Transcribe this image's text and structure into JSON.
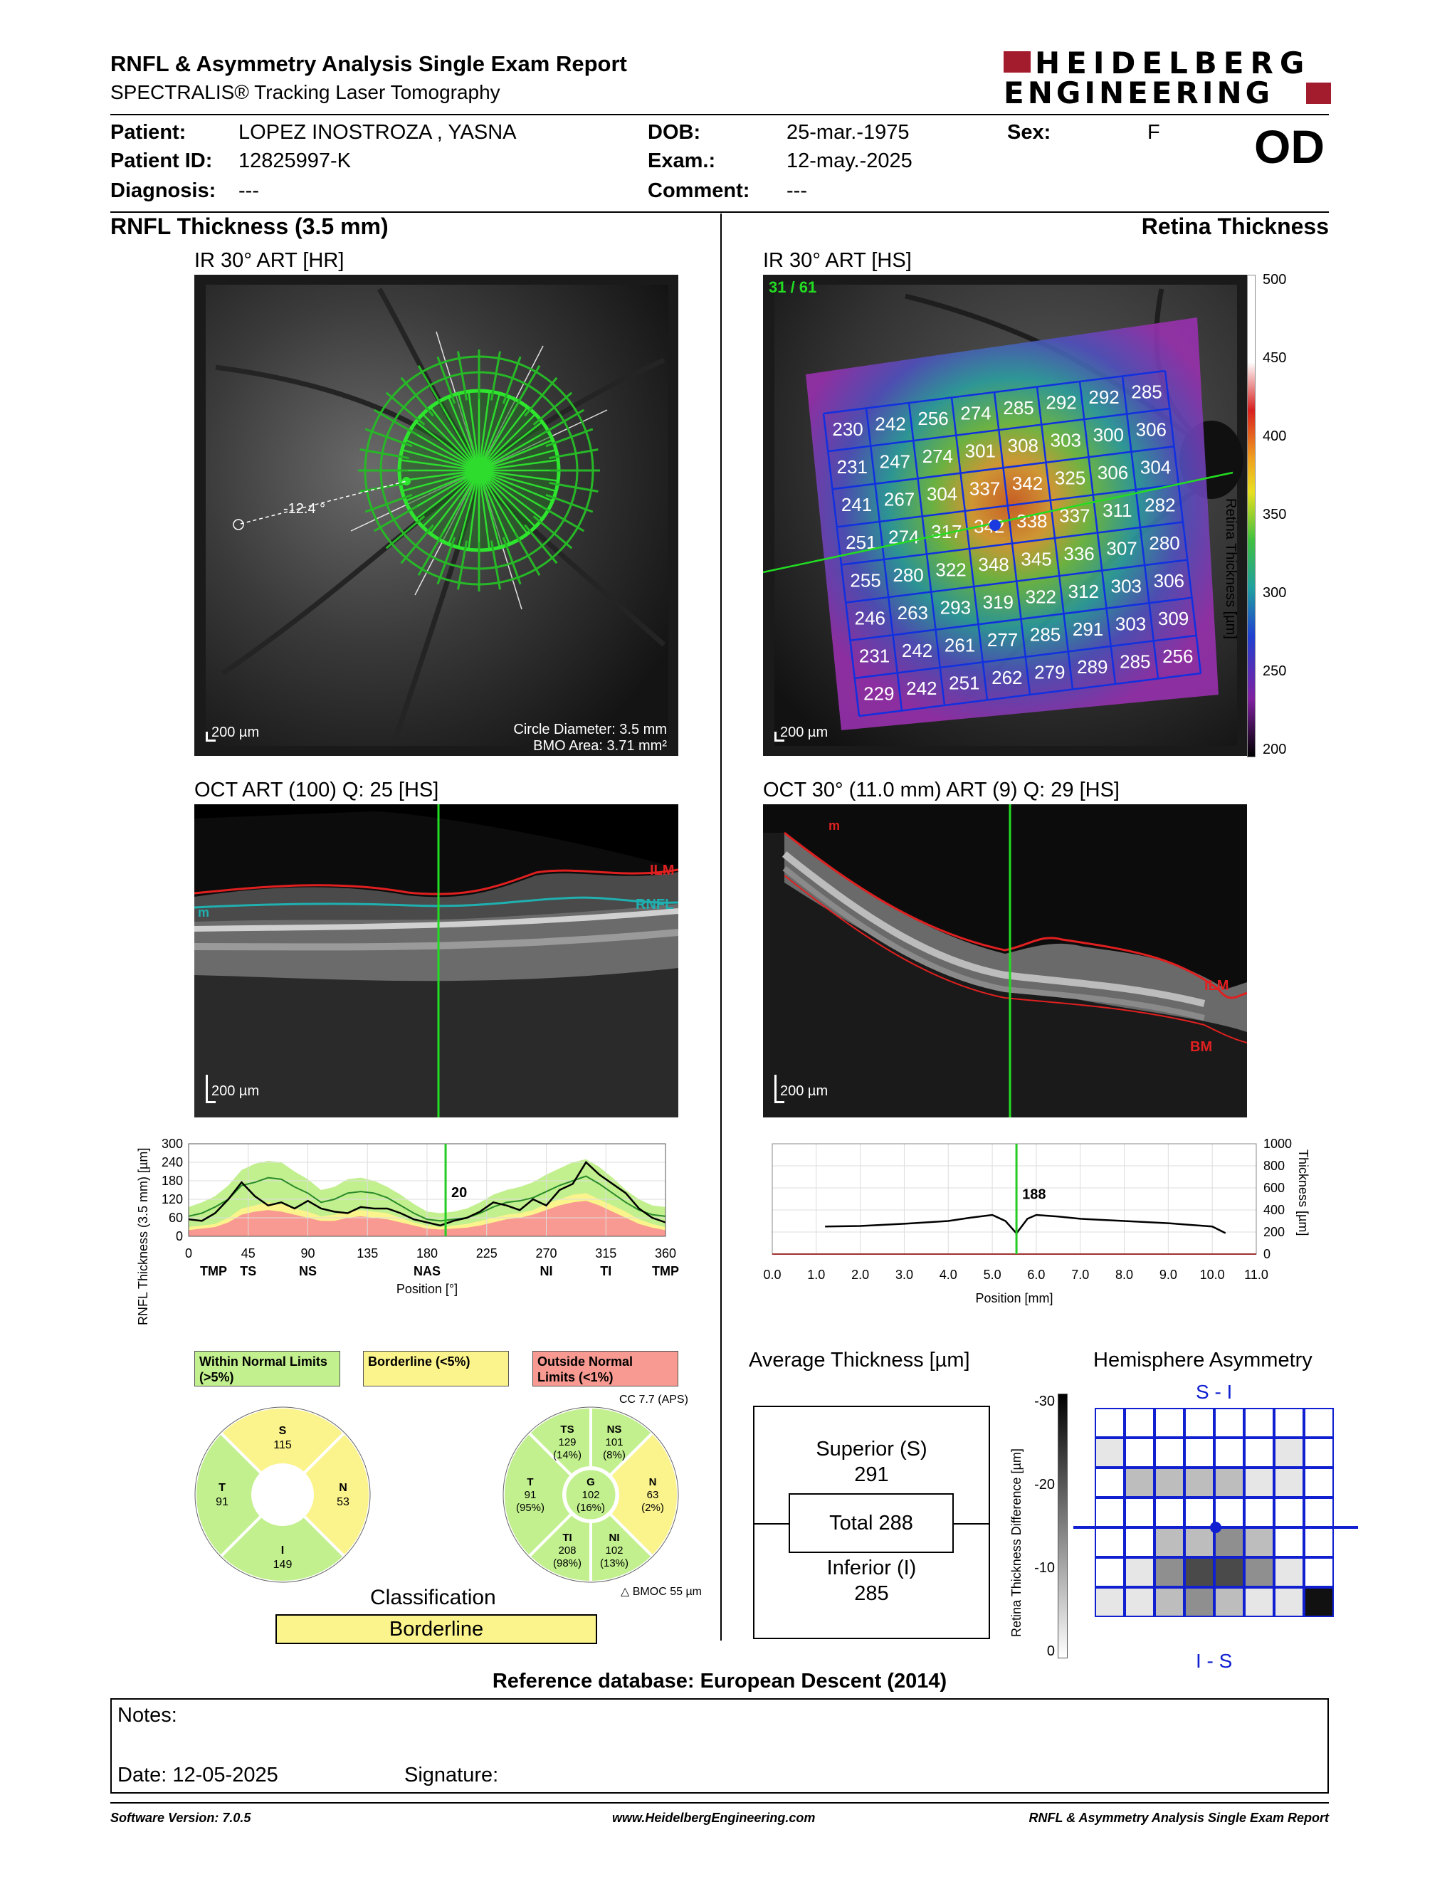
{
  "header": {
    "title": "RNFL & Asymmetry Analysis Single Exam Report",
    "subtitle": "SPECTRALIS® Tracking Laser Tomography",
    "logo_line1": "HEIDELBERG",
    "logo_line2": "ENGINEERING",
    "eye": "OD"
  },
  "patient": {
    "patient_label": "Patient:",
    "patient_value": "LOPEZ INOSTROZA , YASNA",
    "id_label": "Patient ID:",
    "id_value": "12825997-K",
    "diagnosis_label": "Diagnosis:",
    "diagnosis_value": "---",
    "dob_label": "DOB:",
    "dob_value": "25-mar.-1975",
    "exam_label": "Exam.:",
    "exam_value": "12-may.-2025",
    "comment_label": "Comment:",
    "comment_value": "---",
    "sex_label": "Sex:",
    "sex_value": "F"
  },
  "left": {
    "section_title": "RNFL Thickness (3.5 mm)",
    "ir_caption": "IR 30° ART [HR]",
    "ir_scale": "200 µm",
    "ir_angle": "-12.4 °",
    "circle_diameter": "Circle Diameter: 3.5 mm",
    "bmo_area": "BMO Area: 3.71 mm²",
    "oct_caption": "OCT ART (100) Q: 25 [HS]",
    "oct_scale": "200 µm",
    "oct_ilm": "ILM",
    "oct_rnfl": "RNFL",
    "oct_m": "m"
  },
  "right": {
    "section_title": "Retina Thickness",
    "ir_caption": "IR 30° ART [HS]",
    "ir_scale": "200 µm",
    "frame": "31 / 61",
    "colorbar_label": "Retina Thickness [µm]",
    "colorbar_ticks": [
      "500",
      "450",
      "400",
      "350",
      "300",
      "250",
      "200"
    ],
    "oct_caption": "OCT 30° (11.0 mm) ART (9) Q: 29 [HS]",
    "oct_scale": "200 µm",
    "oct_ilm": "ILM",
    "oct_bm": "BM",
    "oct_m": "m",
    "grid_values": [
      [
        "230",
        "242",
        "256",
        "274",
        "285",
        "292",
        "292",
        "285"
      ],
      [
        "231",
        "247",
        "274",
        "301",
        "308",
        "303",
        "300",
        "306"
      ],
      [
        "241",
        "267",
        "304",
        "337",
        "342",
        "325",
        "306",
        "304"
      ],
      [
        "251",
        "274",
        "317",
        "342",
        "338",
        "337",
        "311",
        "282"
      ],
      [
        "255",
        "280",
        "322",
        "348",
        "345",
        "336",
        "307",
        "280"
      ],
      [
        "246",
        "263",
        "293",
        "319",
        "322",
        "312",
        "303",
        "306"
      ],
      [
        "231",
        "242",
        "261",
        "277",
        "285",
        "291",
        "303",
        "309"
      ],
      [
        "229",
        "242",
        "251",
        "262",
        "279",
        "289",
        "285",
        "256"
      ]
    ]
  },
  "chart_data": [
    {
      "type": "line",
      "name": "rnfl-profile",
      "ylabel": "RNFL Thickness (3.5 mm) [µm]",
      "xlabel": "Position [°]",
      "x_ticks": [
        "0",
        "45",
        "90",
        "135",
        "180",
        "225",
        "270",
        "315",
        "360"
      ],
      "y_ticks": [
        "0",
        "60",
        "120",
        "180",
        "240",
        "300"
      ],
      "ylim": [
        0,
        300
      ],
      "xlim": [
        0,
        360
      ],
      "sector_labels": [
        "TMP",
        "TS",
        "NS",
        "NAS",
        "NI",
        "TI",
        "TMP"
      ],
      "marker_value": "20",
      "marker_position": 194,
      "x": [
        0,
        10,
        20,
        30,
        40,
        50,
        60,
        70,
        80,
        90,
        100,
        110,
        120,
        130,
        140,
        150,
        160,
        170,
        180,
        190,
        200,
        210,
        220,
        230,
        240,
        250,
        260,
        270,
        280,
        290,
        300,
        310,
        320,
        330,
        340,
        350,
        360
      ],
      "patient": [
        55,
        50,
        75,
        120,
        175,
        130,
        100,
        110,
        90,
        115,
        90,
        80,
        75,
        95,
        90,
        90,
        75,
        55,
        45,
        35,
        50,
        60,
        80,
        110,
        100,
        85,
        120,
        100,
        150,
        170,
        240,
        200,
        170,
        140,
        90,
        60,
        45
      ],
      "normal_mean": [
        65,
        75,
        95,
        120,
        165,
        175,
        190,
        185,
        160,
        140,
        110,
        120,
        140,
        145,
        140,
        125,
        100,
        75,
        55,
        50,
        55,
        60,
        75,
        95,
        110,
        115,
        125,
        145,
        165,
        180,
        195,
        170,
        140,
        110,
        85,
        70,
        65
      ],
      "band_low": [
        20,
        25,
        30,
        45,
        70,
        80,
        85,
        80,
        70,
        60,
        50,
        50,
        60,
        65,
        60,
        55,
        45,
        35,
        25,
        22,
        25,
        28,
        35,
        45,
        55,
        60,
        70,
        85,
        100,
        110,
        115,
        100,
        80,
        60,
        40,
        28,
        20
      ],
      "band_border": [
        30,
        35,
        40,
        60,
        90,
        100,
        110,
        105,
        90,
        80,
        65,
        70,
        80,
        85,
        80,
        75,
        60,
        45,
        35,
        30,
        35,
        40,
        50,
        60,
        70,
        75,
        85,
        105,
        120,
        135,
        140,
        120,
        100,
        80,
        55,
        40,
        30
      ],
      "band_high": [
        95,
        110,
        130,
        165,
        215,
        235,
        245,
        240,
        210,
        185,
        150,
        160,
        185,
        190,
        180,
        160,
        135,
        105,
        80,
        75,
        80,
        90,
        110,
        135,
        150,
        160,
        175,
        200,
        220,
        240,
        250,
        225,
        190,
        150,
        120,
        100,
        95
      ]
    },
    {
      "type": "line",
      "name": "retina-profile",
      "ylabel": "Thickness [µm]",
      "xlabel": "Position [mm]",
      "x_ticks": [
        "0.0",
        "1.0",
        "2.0",
        "3.0",
        "4.0",
        "5.0",
        "6.0",
        "7.0",
        "8.0",
        "9.0",
        "10.0",
        "11.0"
      ],
      "y_ticks": [
        "0",
        "200",
        "400",
        "600",
        "800",
        "1000"
      ],
      "ylim": [
        0,
        1000
      ],
      "xlim": [
        0,
        11
      ],
      "marker_value": "188",
      "marker_position": 5.55,
      "x": [
        1.2,
        2,
        3,
        4,
        4.5,
        5,
        5.3,
        5.55,
        5.8,
        6,
        6.5,
        7,
        8,
        9,
        10,
        10.3
      ],
      "values": [
        250,
        255,
        275,
        300,
        330,
        355,
        300,
        188,
        320,
        355,
        340,
        320,
        300,
        280,
        250,
        190
      ]
    }
  ],
  "sectors": {
    "within_normal": "Within Normal Limits (>5%)",
    "borderline": "Borderline (<5%)",
    "outside_normal": "Outside Normal Limits (<1%)",
    "cc": "CC 7.7 (APS)",
    "bmoc": "BMOC 55 µm",
    "quad": {
      "S": {
        "label": "S",
        "value": "115"
      },
      "T": {
        "label": "T",
        "value": "91"
      },
      "N": {
        "label": "N",
        "value": "53"
      },
      "I": {
        "label": "I",
        "value": "149"
      }
    },
    "six": {
      "TS": {
        "label": "TS",
        "value": "129",
        "pct": "(14%)"
      },
      "NS": {
        "label": "NS",
        "value": "101",
        "pct": "(8%)"
      },
      "T": {
        "label": "T",
        "value": "91",
        "pct": "(95%)"
      },
      "G": {
        "label": "G",
        "value": "102",
        "pct": "(16%)"
      },
      "N": {
        "label": "N",
        "value": "63",
        "pct": "(2%)"
      },
      "TI": {
        "label": "TI",
        "value": "208",
        "pct": "(98%)"
      },
      "NI": {
        "label": "NI",
        "value": "102",
        "pct": "(13%)"
      }
    },
    "classification_title": "Classification",
    "classification_value": "Borderline",
    "colors": {
      "green": "#c2f08e",
      "yellow": "#fbf38c",
      "red": "#f89a91"
    }
  },
  "average": {
    "title": "Average Thickness [µm]",
    "superior_label": "Superior (S)",
    "superior_value": "291",
    "total": "Total 288",
    "inferior_label": "Inferior (I)",
    "inferior_value": "285"
  },
  "asymmetry": {
    "title": "Hemisphere Asymmetry",
    "top_label": "S - I",
    "bottom_label": "I - S",
    "axis_label": "Retina Thickness Difference [µm]",
    "axis_ticks": [
      "-30",
      "-20",
      "-10",
      "0"
    ],
    "cells": [
      [
        0,
        0,
        0,
        0,
        0,
        0,
        0,
        0
      ],
      [
        1,
        0,
        0,
        0,
        0,
        0,
        1,
        0
      ],
      [
        0,
        2,
        2,
        2,
        2,
        1,
        1,
        0
      ],
      [
        0,
        0,
        0,
        0,
        0,
        0,
        0,
        0
      ],
      [
        0,
        0,
        2,
        2,
        3,
        2,
        0,
        0
      ],
      [
        0,
        1,
        3,
        5,
        5,
        3,
        1,
        0
      ],
      [
        1,
        1,
        2,
        3,
        2,
        1,
        1,
        6
      ]
    ]
  },
  "reference": "Reference database: European Descent (2014)",
  "notes": {
    "label": "Notes:",
    "date_label": "Date: 12-05-2025",
    "signature_label": "Signature:"
  },
  "footer": {
    "software": "Software Version: 7.0.5",
    "website": "www.HeidelbergEngineering.com",
    "report": "RNFL & Asymmetry Analysis Single Exam Report"
  }
}
